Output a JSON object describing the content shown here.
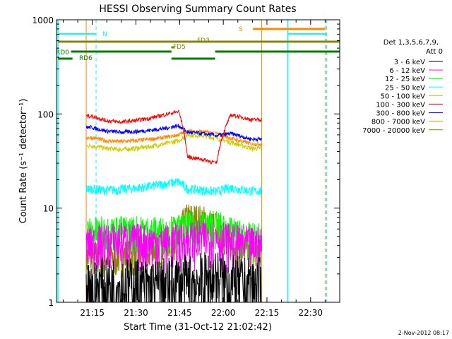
{
  "chart_data": {
    "type": "line",
    "title": "HESSI Observing Summary Count Rates",
    "xlabel": "Start Time (31-Oct-12 21:02:42)",
    "ylabel": "Count Rate (s⁻¹ detector⁻¹)",
    "y_scale": "log",
    "ylim": [
      1,
      1000
    ],
    "xlim_minutes_from_start": [
      0,
      97.3
    ],
    "x_ticks": [
      "21:15",
      "21:30",
      "21:45",
      "22:00",
      "22:15",
      "22:30"
    ],
    "y_ticks": [
      "1",
      "10",
      "100",
      "1000"
    ],
    "grid": false,
    "legend_position": "right",
    "legend_header": [
      "Det 1,3,5,6,7,9,",
      "Att 0"
    ],
    "series": [
      {
        "name": "3 - 6 keV",
        "color": "#000000",
        "t_min": [
          12,
          17,
          22,
          27,
          32,
          37,
          42,
          45,
          50,
          55,
          60,
          65,
          67
        ],
        "values": [
          1.4,
          1.5,
          1.5,
          1.5,
          1.4,
          1.5,
          1.6,
          1.6,
          1.7,
          1.8,
          1.6,
          1.5,
          1.5
        ]
      },
      {
        "name": "6 - 12 keV",
        "color": "#ff00ff",
        "t_min": [
          12,
          17,
          22,
          27,
          32,
          37,
          42,
          45,
          50,
          55,
          60,
          65,
          67
        ],
        "values": [
          4.2,
          4.4,
          4.6,
          4.5,
          4.4,
          4.3,
          4.5,
          4.6,
          4.8,
          4.9,
          4.4,
          4.2,
          4.1
        ]
      },
      {
        "name": "12 - 25 keV",
        "color": "#00ff00",
        "t_min": [
          12,
          17,
          22,
          27,
          32,
          37,
          42,
          45,
          50,
          55,
          60,
          65,
          67
        ],
        "values": [
          5.6,
          5.7,
          5.8,
          5.8,
          5.7,
          5.6,
          5.9,
          6.2,
          6.5,
          6.6,
          5.5,
          5.0,
          4.8
        ]
      },
      {
        "name": "25 - 50 keV",
        "color": "#00ffff",
        "t_min": [
          12,
          17,
          22,
          27,
          32,
          37,
          42,
          45,
          50,
          55,
          60,
          65,
          67
        ],
        "values": [
          16,
          15.5,
          15.8,
          16.3,
          17,
          18,
          19,
          16,
          15.5,
          15,
          16.5,
          15.5,
          15.2
        ]
      },
      {
        "name": "50 - 100 keV",
        "color": "#cccc00",
        "t_min": [
          12,
          17,
          22,
          27,
          32,
          37,
          42,
          45,
          50,
          55,
          60,
          65,
          67
        ],
        "values": [
          46,
          43,
          42,
          43,
          45,
          48,
          52,
          60,
          59,
          55,
          50,
          45,
          43
        ]
      },
      {
        "name": "100 - 300 keV",
        "color": "#ff0000",
        "t_min": [
          12,
          17,
          22,
          27,
          32,
          37,
          42,
          45,
          50,
          55,
          60,
          65,
          67
        ],
        "values": [
          95,
          85,
          82,
          85,
          90,
          98,
          106,
          35,
          33,
          30,
          98,
          90,
          87
        ]
      },
      {
        "name": "300 - 800 keV",
        "color": "#0000ff",
        "t_min": [
          12,
          17,
          22,
          27,
          32,
          37,
          42,
          45,
          50,
          55,
          60,
          65,
          67
        ],
        "values": [
          72,
          66,
          64,
          65,
          67,
          70,
          75,
          64,
          62,
          59,
          62,
          56,
          54
        ]
      },
      {
        "name": "800 - 7000 keV",
        "color": "#ff8800",
        "t_min": [
          12,
          17,
          22,
          27,
          32,
          37,
          42,
          45,
          50,
          55,
          60,
          65,
          67
        ],
        "values": [
          56,
          52,
          51,
          52,
          54,
          56,
          60,
          66,
          65,
          62,
          55,
          50,
          48
        ]
      },
      {
        "name": "7000 - 20000 keV",
        "color": "#888800",
        "t_min": [
          12,
          17,
          22,
          27,
          32,
          37,
          42,
          45,
          50,
          55,
          60,
          65,
          67
        ],
        "values": [
          3.0,
          3.1,
          3.2,
          3.3,
          3.6,
          4.2,
          5.5,
          8.0,
          7.5,
          6.5,
          4.5,
          3.6,
          3.3
        ]
      }
    ],
    "annotations": [
      {
        "label": "N",
        "color": "#00ffff"
      },
      {
        "label": "S",
        "color": "#ff8800"
      },
      {
        "label": "FD3",
        "color": "#888800"
      },
      {
        "label": "FD5",
        "color": "#888800"
      },
      {
        "label": "RD0",
        "color": "#008000"
      },
      {
        "label": "RD6",
        "color": "#008000"
      }
    ],
    "timestamp": "2-Nov-2012 08:17"
  }
}
